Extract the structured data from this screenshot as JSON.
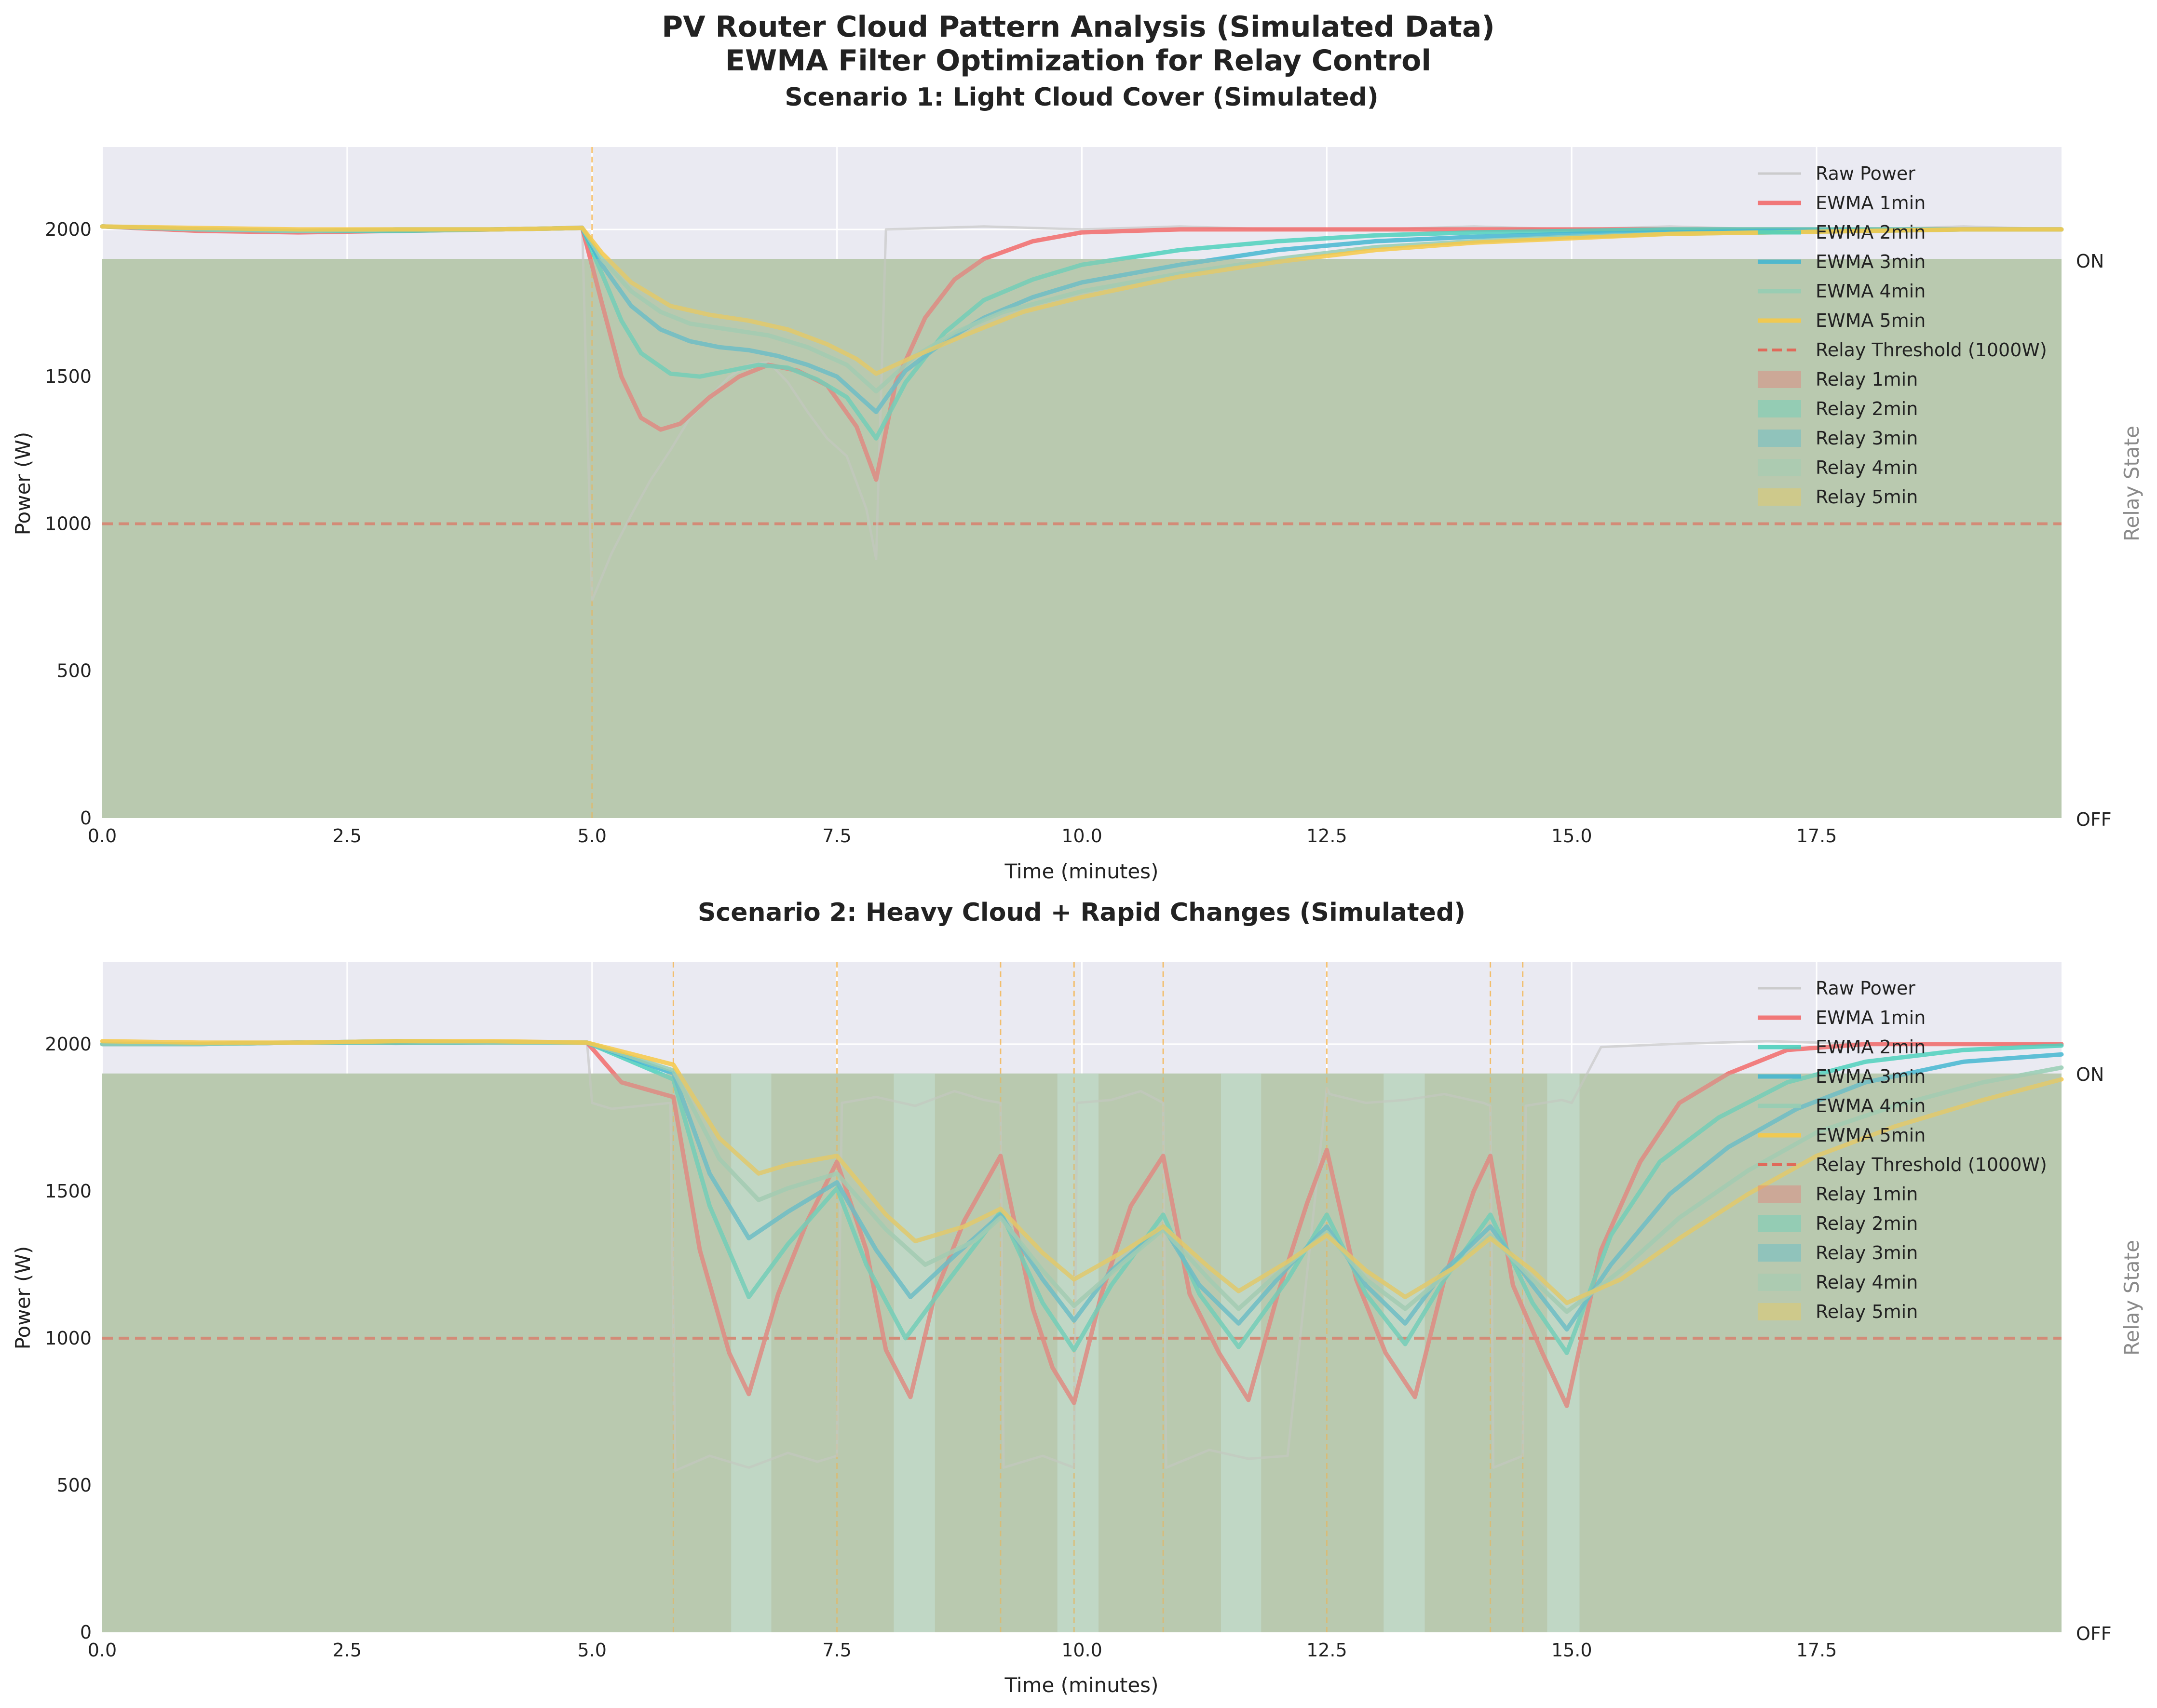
{
  "figure": {
    "title_line1": "PV Router Cloud Pattern Analysis (Simulated Data)",
    "title_line2": "EWMA Filter Optimization for Relay Control"
  },
  "colors": {
    "plot_bg": "#EAEAF2",
    "raw": "#c8c8c8",
    "ewma_1min": "#F26B6B",
    "ewma_2min": "#4FD1BD",
    "ewma_3min": "#45B7D1",
    "ewma_4min": "#96CEB4",
    "ewma_5min": "#F7C948",
    "threshold": "#E06A5A",
    "event": "#F5B041",
    "relay_fill": "#B9C9B0"
  },
  "chart_data": [
    {
      "type": "line",
      "title": "Scenario 1: Light Cloud Cover (Simulated)",
      "xlabel": "Time (minutes)",
      "ylabel": "Power (W)",
      "right_ylabel": "Relay State",
      "right_ticks": [
        "ON",
        "OFF"
      ],
      "xlim": [
        0,
        20
      ],
      "ylim": [
        0,
        2280
      ],
      "xticks": [
        "0.0",
        "2.5",
        "5.0",
        "7.5",
        "10.0",
        "12.5",
        "15.0",
        "17.5"
      ],
      "yticks": [
        "0",
        "500",
        "1000",
        "1500",
        "2000"
      ],
      "threshold": 1000,
      "threshold_label": "Relay Threshold (1000W)",
      "event_lines": [
        5.0
      ],
      "relay_on_level": 1900,
      "relay_off_intervals": [],
      "legend": [
        "Raw Power",
        "EWMA 1min",
        "EWMA 2min",
        "EWMA 3min",
        "EWMA 4min",
        "EWMA 5min",
        "Relay Threshold (1000W)",
        "Relay 1min",
        "Relay 2min",
        "Relay 3min",
        "Relay 4min",
        "Relay 5min"
      ],
      "series": [
        {
          "name": "Raw Power",
          "x": [
            0,
            1,
            2,
            3,
            4,
            4.9,
            5.0,
            5.2,
            5.4,
            5.6,
            5.8,
            6.0,
            6.2,
            6.4,
            6.6,
            6.8,
            7.0,
            7.2,
            7.4,
            7.6,
            7.8,
            7.9,
            8.0,
            9,
            10,
            11,
            12,
            13,
            14,
            15,
            16,
            17,
            18,
            19,
            20
          ],
          "y": [
            2010,
            2000,
            1990,
            2000,
            2000,
            2010,
            740,
            900,
            1030,
            1150,
            1250,
            1360,
            1430,
            1500,
            1540,
            1550,
            1480,
            1380,
            1290,
            1230,
            1050,
            880,
            2000,
            2010,
            2000,
            2010,
            2000,
            2000,
            2010,
            2000,
            2010,
            2000,
            2000,
            2010,
            2000
          ]
        },
        {
          "name": "EWMA 1min",
          "x": [
            0,
            1,
            2,
            3,
            4,
            4.9,
            5.1,
            5.3,
            5.5,
            5.7,
            5.9,
            6.2,
            6.5,
            6.8,
            7.1,
            7.4,
            7.7,
            7.9,
            8.1,
            8.4,
            8.7,
            9.0,
            9.5,
            10,
            11,
            12,
            13,
            14,
            15,
            16,
            17,
            18,
            19,
            20
          ],
          "y": [
            2010,
            1995,
            1990,
            1995,
            2000,
            2005,
            1750,
            1500,
            1360,
            1320,
            1340,
            1430,
            1500,
            1540,
            1520,
            1470,
            1330,
            1150,
            1480,
            1700,
            1830,
            1900,
            1960,
            1990,
            2000,
            2000,
            2000,
            2000,
            2000,
            2000,
            2000,
            2000,
            2000,
            2000
          ]
        },
        {
          "name": "EWMA 2min",
          "x": [
            0,
            1,
            2,
            3,
            4,
            4.9,
            5.1,
            5.3,
            5.5,
            5.8,
            6.1,
            6.4,
            6.7,
            7.0,
            7.3,
            7.6,
            7.9,
            8.2,
            8.6,
            9.0,
            9.5,
            10,
            11,
            12,
            13,
            14,
            15,
            16,
            17,
            18,
            19,
            20
          ],
          "y": [
            2010,
            2000,
            1995,
            1995,
            2000,
            2005,
            1850,
            1690,
            1580,
            1510,
            1500,
            1520,
            1540,
            1530,
            1490,
            1430,
            1290,
            1480,
            1650,
            1760,
            1830,
            1880,
            1930,
            1960,
            1980,
            1990,
            1995,
            2000,
            2000,
            2000,
            2000,
            2000
          ]
        },
        {
          "name": "EWMA 3min",
          "x": [
            0,
            1,
            2,
            3,
            4,
            4.9,
            5.1,
            5.4,
            5.7,
            6.0,
            6.3,
            6.6,
            6.9,
            7.2,
            7.5,
            7.9,
            8.2,
            8.6,
            9.0,
            9.5,
            10,
            11,
            12,
            13,
            14,
            15,
            16,
            17,
            18,
            19,
            20
          ],
          "y": [
            2010,
            2000,
            1995,
            2000,
            2000,
            2005,
            1880,
            1740,
            1660,
            1620,
            1600,
            1590,
            1570,
            1540,
            1500,
            1380,
            1520,
            1620,
            1700,
            1770,
            1820,
            1880,
            1930,
            1960,
            1975,
            1985,
            1990,
            1995,
            1995,
            2000,
            2000
          ]
        },
        {
          "name": "EWMA 4min",
          "x": [
            0,
            1,
            2,
            3,
            4,
            4.9,
            5.1,
            5.4,
            5.7,
            6.0,
            6.4,
            6.8,
            7.2,
            7.6,
            7.9,
            8.3,
            8.7,
            9.2,
            10,
            11,
            12,
            13,
            14,
            15,
            16,
            17,
            18,
            19,
            20
          ],
          "y": [
            2010,
            2000,
            1995,
            2000,
            2000,
            2005,
            1900,
            1790,
            1720,
            1680,
            1660,
            1640,
            1600,
            1540,
            1450,
            1570,
            1650,
            1720,
            1790,
            1850,
            1900,
            1940,
            1960,
            1975,
            1985,
            1990,
            1995,
            2000,
            2000
          ]
        },
        {
          "name": "EWMA 5min",
          "x": [
            0,
            1,
            2,
            3,
            4,
            4.9,
            5.1,
            5.4,
            5.8,
            6.2,
            6.6,
            7.0,
            7.4,
            7.7,
            7.9,
            8.3,
            8.8,
            9.4,
            10,
            11,
            12,
            13,
            14,
            15,
            16,
            17,
            18,
            19,
            20
          ],
          "y": [
            2010,
            2005,
            2000,
            2000,
            2000,
            2005,
            1920,
            1820,
            1740,
            1710,
            1690,
            1660,
            1610,
            1560,
            1510,
            1570,
            1640,
            1720,
            1770,
            1840,
            1890,
            1930,
            1955,
            1970,
            1985,
            1990,
            1995,
            2000,
            2000
          ]
        }
      ]
    },
    {
      "type": "line",
      "title": "Scenario 2: Heavy Cloud + Rapid Changes (Simulated)",
      "xlabel": "Time (minutes)",
      "ylabel": "Power (W)",
      "right_ylabel": "Relay State",
      "right_ticks": [
        "ON",
        "OFF"
      ],
      "xlim": [
        0,
        20
      ],
      "ylim": [
        0,
        2280
      ],
      "xticks": [
        "0.0",
        "2.5",
        "5.0",
        "7.5",
        "10.0",
        "12.5",
        "15.0",
        "17.5"
      ],
      "yticks": [
        "0",
        "500",
        "1000",
        "1500",
        "2000"
      ],
      "threshold": 1000,
      "threshold_label": "Relay Threshold (1000W)",
      "event_lines": [
        5.83,
        7.5,
        9.17,
        9.92,
        10.83,
        12.5,
        14.17,
        14.5
      ],
      "relay_on_level": 1900,
      "relay_off_intervals": [
        [
          6.42,
          6.83
        ],
        [
          8.08,
          8.5
        ],
        [
          9.75,
          10.17
        ],
        [
          11.42,
          11.83
        ],
        [
          13.08,
          13.5
        ],
        [
          14.75,
          15.08
        ]
      ],
      "legend": [
        "Raw Power",
        "EWMA 1min",
        "EWMA 2min",
        "EWMA 3min",
        "EWMA 4min",
        "EWMA 5min",
        "Relay Threshold (1000W)",
        "Relay 1min",
        "Relay 2min",
        "Relay 3min",
        "Relay 4min",
        "Relay 5min"
      ],
      "series": [
        {
          "name": "Raw Power",
          "x": [
            0,
            1,
            2,
            3,
            4,
            4.95,
            5.0,
            5.2,
            5.5,
            5.8,
            5.85,
            6.2,
            6.6,
            7.0,
            7.3,
            7.5,
            7.55,
            7.9,
            8.3,
            8.7,
            9.0,
            9.17,
            9.2,
            9.6,
            9.92,
            9.95,
            10.3,
            10.6,
            10.83,
            10.86,
            11.3,
            11.7,
            12.1,
            12.5,
            12.53,
            12.9,
            13.3,
            13.7,
            14.1,
            14.17,
            14.2,
            14.5,
            14.53,
            14.9,
            15.0,
            15.3,
            16,
            17,
            18,
            19,
            20
          ],
          "y": [
            2010,
            2000,
            2010,
            2000,
            2010,
            2000,
            1800,
            1780,
            1790,
            1800,
            550,
            600,
            560,
            610,
            580,
            600,
            1800,
            1820,
            1790,
            1840,
            1810,
            1800,
            560,
            600,
            560,
            1800,
            1810,
            1840,
            1800,
            560,
            620,
            590,
            600,
            1850,
            1830,
            1800,
            1810,
            1830,
            1800,
            1790,
            560,
            600,
            1790,
            1810,
            1800,
            1990,
            2000,
            2010,
            2000,
            2000,
            2000
          ]
        },
        {
          "name": "EWMA 1min",
          "x": [
            0,
            1,
            2,
            3,
            4,
            4.95,
            5.3,
            5.83,
            6.1,
            6.4,
            6.6,
            6.9,
            7.2,
            7.5,
            7.8,
            8.0,
            8.25,
            8.5,
            8.8,
            9.17,
            9.5,
            9.7,
            9.92,
            10.2,
            10.5,
            10.83,
            11.1,
            11.4,
            11.7,
            12.0,
            12.3,
            12.5,
            12.8,
            13.1,
            13.4,
            13.7,
            14.0,
            14.17,
            14.4,
            14.7,
            14.95,
            15.3,
            15.7,
            16.1,
            16.6,
            17.2,
            18,
            19,
            20
          ],
          "y": [
            2000,
            2000,
            2005,
            2005,
            2005,
            2005,
            1870,
            1820,
            1300,
            950,
            810,
            1150,
            1400,
            1600,
            1300,
            960,
            800,
            1150,
            1400,
            1620,
            1100,
            900,
            780,
            1150,
            1450,
            1620,
            1150,
            950,
            790,
            1150,
            1460,
            1640,
            1200,
            950,
            800,
            1200,
            1500,
            1620,
            1180,
            950,
            770,
            1300,
            1600,
            1800,
            1900,
            1980,
            2000,
            2000,
            2000
          ]
        },
        {
          "name": "EWMA 2min",
          "x": [
            0,
            1,
            2,
            3,
            4,
            4.95,
            5.83,
            6.2,
            6.6,
            7.0,
            7.5,
            7.8,
            8.2,
            8.6,
            9.17,
            9.6,
            9.92,
            10.3,
            10.83,
            11.2,
            11.6,
            12.1,
            12.5,
            12.9,
            13.3,
            13.7,
            14.17,
            14.6,
            14.95,
            15.4,
            15.9,
            16.5,
            17.2,
            18,
            19,
            20
          ],
          "y": [
            2000,
            2000,
            2005,
            2005,
            2005,
            2005,
            1880,
            1450,
            1140,
            1320,
            1510,
            1250,
            1000,
            1180,
            1430,
            1120,
            960,
            1180,
            1420,
            1150,
            970,
            1200,
            1420,
            1150,
            980,
            1200,
            1420,
            1120,
            950,
            1350,
            1600,
            1750,
            1870,
            1940,
            1980,
            1995
          ]
        },
        {
          "name": "EWMA 3min",
          "x": [
            0,
            1,
            2,
            3,
            4,
            4.95,
            5.83,
            6.2,
            6.6,
            7.0,
            7.5,
            7.9,
            8.25,
            8.7,
            9.17,
            9.6,
            9.92,
            10.3,
            10.83,
            11.2,
            11.6,
            12.1,
            12.5,
            12.9,
            13.3,
            13.7,
            14.17,
            14.6,
            14.95,
            15.4,
            16,
            16.6,
            17.3,
            18,
            19,
            20
          ],
          "y": [
            2000,
            2000,
            2005,
            2010,
            2005,
            2005,
            1900,
            1560,
            1340,
            1430,
            1530,
            1300,
            1140,
            1280,
            1420,
            1200,
            1060,
            1230,
            1380,
            1180,
            1050,
            1240,
            1380,
            1180,
            1050,
            1230,
            1380,
            1180,
            1030,
            1250,
            1490,
            1650,
            1780,
            1870,
            1940,
            1965
          ]
        },
        {
          "name": "EWMA 4min",
          "x": [
            0,
            1,
            2,
            3,
            4,
            4.95,
            5.83,
            6.3,
            6.7,
            7.0,
            7.5,
            8.0,
            8.4,
            8.9,
            9.17,
            9.6,
            9.92,
            10.4,
            10.83,
            11.3,
            11.6,
            12.1,
            12.5,
            12.9,
            13.3,
            13.8,
            14.17,
            14.6,
            14.95,
            15.5,
            16.1,
            16.8,
            17.5,
            18.3,
            19.2,
            20
          ],
          "y": [
            2000,
            2000,
            2005,
            2010,
            2005,
            2005,
            1910,
            1610,
            1470,
            1510,
            1560,
            1370,
            1250,
            1330,
            1410,
            1230,
            1110,
            1250,
            1370,
            1200,
            1100,
            1250,
            1360,
            1200,
            1100,
            1240,
            1350,
            1200,
            1090,
            1230,
            1410,
            1570,
            1700,
            1790,
            1870,
            1920
          ]
        },
        {
          "name": "EWMA 5min",
          "x": [
            0,
            1,
            2,
            3,
            4,
            4.95,
            5.83,
            6.3,
            6.7,
            7.0,
            7.5,
            8.0,
            8.3,
            8.8,
            9.17,
            9.6,
            9.92,
            10.4,
            10.83,
            11.3,
            11.6,
            12.1,
            12.5,
            12.9,
            13.3,
            13.8,
            14.17,
            14.6,
            14.95,
            15.5,
            16.1,
            16.8,
            17.5,
            18.3,
            19.2,
            20
          ],
          "y": [
            2010,
            2005,
            2005,
            2010,
            2010,
            2005,
            1930,
            1680,
            1560,
            1590,
            1620,
            1420,
            1330,
            1380,
            1440,
            1290,
            1200,
            1290,
            1380,
            1240,
            1160,
            1260,
            1350,
            1230,
            1140,
            1240,
            1340,
            1230,
            1120,
            1200,
            1340,
            1490,
            1620,
            1720,
            1810,
            1880
          ]
        }
      ]
    }
  ]
}
